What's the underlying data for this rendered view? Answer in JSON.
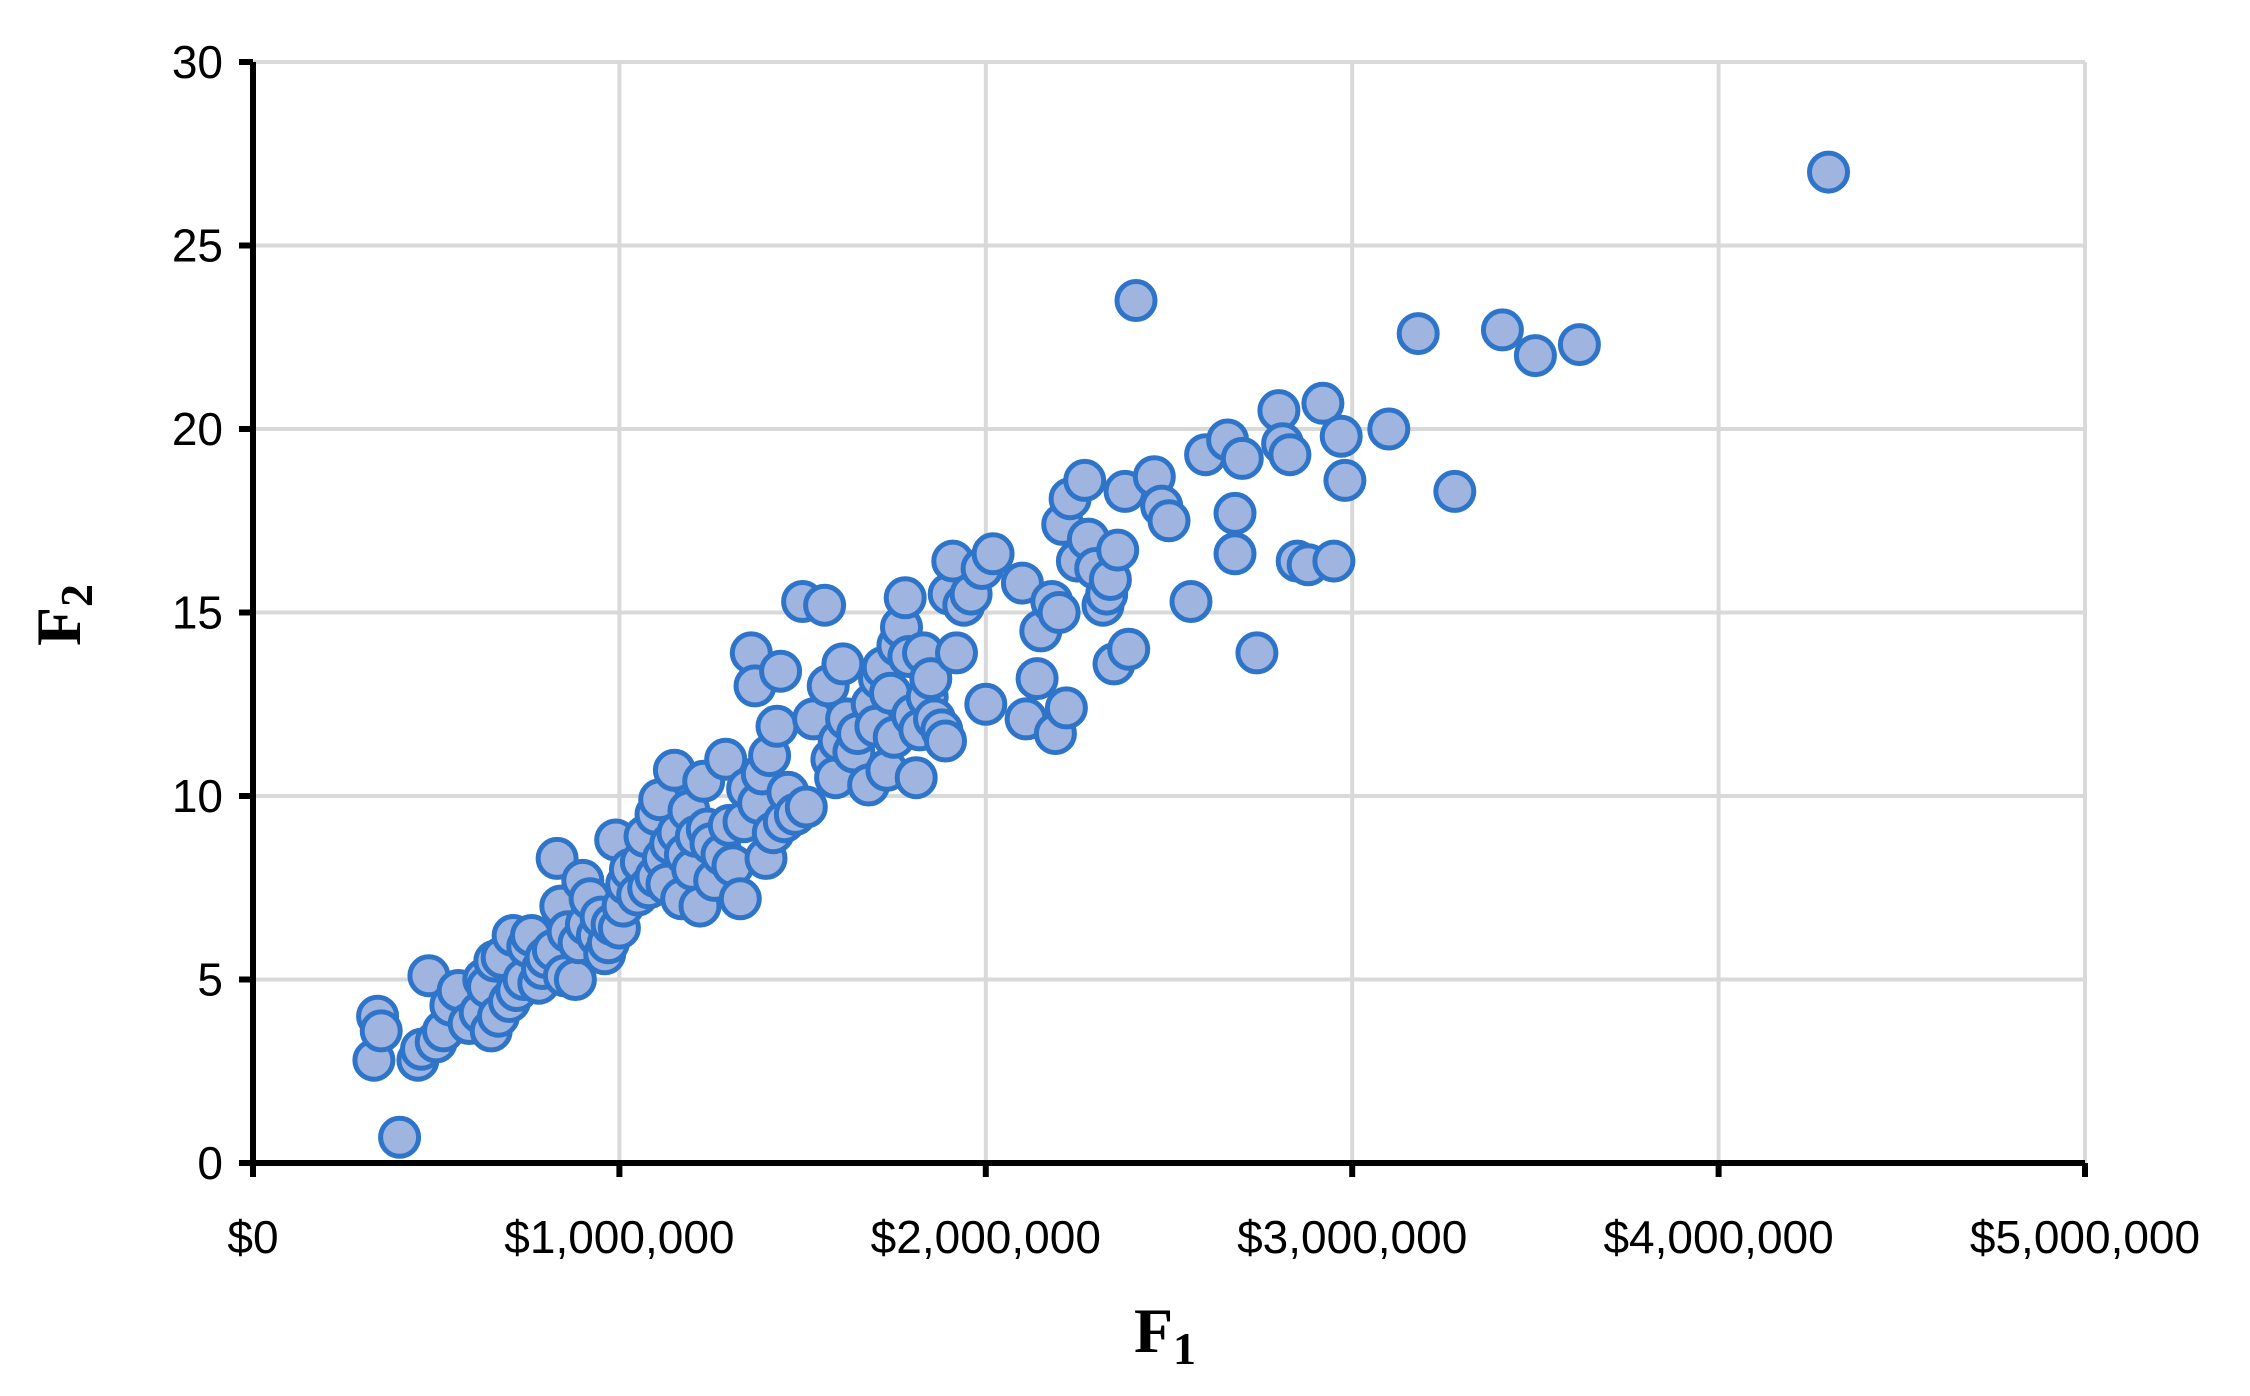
{
  "chart_data": {
    "type": "scatter",
    "title": "",
    "xlabel": "F",
    "xlabel_sub": "1",
    "ylabel": "F",
    "ylabel_sub": "2",
    "xlim": [
      0,
      5000000
    ],
    "ylim": [
      0,
      30
    ],
    "grid": true,
    "legend": "none",
    "x_ticks": [
      {
        "value": 0,
        "label": "$0"
      },
      {
        "value": 1000000,
        "label": "$1,000,000"
      },
      {
        "value": 2000000,
        "label": "$2,000,000"
      },
      {
        "value": 3000000,
        "label": "$3,000,000"
      },
      {
        "value": 4000000,
        "label": "$4,000,000"
      },
      {
        "value": 5000000,
        "label": "$5,000,000"
      }
    ],
    "y_ticks": [
      {
        "value": 0,
        "label": "0"
      },
      {
        "value": 5,
        "label": "5"
      },
      {
        "value": 10,
        "label": "10"
      },
      {
        "value": 15,
        "label": "15"
      },
      {
        "value": 20,
        "label": "20"
      },
      {
        "value": 25,
        "label": "25"
      },
      {
        "value": 30,
        "label": "30"
      }
    ],
    "colors": {
      "marker_fill": "#9fb4de",
      "marker_edge": "#2e75c9",
      "grid": "#d9d9d9",
      "axis": "#000000"
    },
    "series": [
      {
        "points": [
          [
            330000,
            2.8
          ],
          [
            340000,
            4.0
          ],
          [
            350000,
            3.6
          ],
          [
            400000,
            0.7
          ],
          [
            450000,
            2.8
          ],
          [
            460000,
            3.1
          ],
          [
            480000,
            5.1
          ],
          [
            500000,
            3.3
          ],
          [
            520000,
            3.6
          ],
          [
            540000,
            4.3
          ],
          [
            560000,
            4.7
          ],
          [
            590000,
            3.8
          ],
          [
            620000,
            4.1
          ],
          [
            630000,
            5.0
          ],
          [
            640000,
            4.8
          ],
          [
            650000,
            3.6
          ],
          [
            660000,
            5.5
          ],
          [
            670000,
            4.0
          ],
          [
            680000,
            5.6
          ],
          [
            700000,
            4.4
          ],
          [
            710000,
            6.2
          ],
          [
            720000,
            4.7
          ],
          [
            740000,
            5.0
          ],
          [
            750000,
            5.9
          ],
          [
            760000,
            6.2
          ],
          [
            780000,
            4.9
          ],
          [
            790000,
            5.3
          ],
          [
            800000,
            5.6
          ],
          [
            820000,
            5.8
          ],
          [
            830000,
            8.3
          ],
          [
            840000,
            7.0
          ],
          [
            850000,
            5.1
          ],
          [
            860000,
            6.3
          ],
          [
            880000,
            5.0
          ],
          [
            890000,
            6.0
          ],
          [
            900000,
            7.7
          ],
          [
            910000,
            6.5
          ],
          [
            920000,
            7.2
          ],
          [
            940000,
            6.2
          ],
          [
            950000,
            6.7
          ],
          [
            960000,
            5.7
          ],
          [
            970000,
            6.0
          ],
          [
            980000,
            6.5
          ],
          [
            990000,
            8.8
          ],
          [
            1000000,
            6.4
          ],
          [
            1010000,
            7.0
          ],
          [
            1020000,
            7.6
          ],
          [
            1030000,
            8.0
          ],
          [
            1050000,
            7.3
          ],
          [
            1060000,
            8.2
          ],
          [
            1070000,
            8.9
          ],
          [
            1080000,
            7.5
          ],
          [
            1100000,
            9.5
          ],
          [
            1100000,
            7.8
          ],
          [
            1110000,
            9.9
          ],
          [
            1120000,
            8.3
          ],
          [
            1130000,
            7.6
          ],
          [
            1140000,
            8.7
          ],
          [
            1150000,
            10.7
          ],
          [
            1160000,
            9.0
          ],
          [
            1170000,
            7.2
          ],
          [
            1180000,
            8.4
          ],
          [
            1190000,
            9.6
          ],
          [
            1200000,
            8.0
          ],
          [
            1210000,
            8.9
          ],
          [
            1220000,
            7.0
          ],
          [
            1230000,
            10.4
          ],
          [
            1240000,
            9.1
          ],
          [
            1250000,
            8.7
          ],
          [
            1260000,
            7.7
          ],
          [
            1280000,
            8.4
          ],
          [
            1290000,
            11.0
          ],
          [
            1300000,
            9.2
          ],
          [
            1310000,
            8.1
          ],
          [
            1330000,
            7.2
          ],
          [
            1340000,
            9.3
          ],
          [
            1350000,
            10.2
          ],
          [
            1360000,
            13.9
          ],
          [
            1370000,
            13.0
          ],
          [
            1380000,
            9.8
          ],
          [
            1390000,
            10.6
          ],
          [
            1400000,
            8.3
          ],
          [
            1410000,
            11.1
          ],
          [
            1420000,
            9.0
          ],
          [
            1430000,
            11.9
          ],
          [
            1440000,
            13.4
          ],
          [
            1450000,
            9.3
          ],
          [
            1460000,
            10.1
          ],
          [
            1480000,
            9.5
          ],
          [
            1500000,
            15.3
          ],
          [
            1510000,
            9.7
          ],
          [
            1530000,
            12.1
          ],
          [
            1560000,
            15.2
          ],
          [
            1570000,
            13.0
          ],
          [
            1580000,
            11.0
          ],
          [
            1590000,
            10.5
          ],
          [
            1600000,
            11.5
          ],
          [
            1610000,
            13.6
          ],
          [
            1620000,
            12.1
          ],
          [
            1640000,
            11.2
          ],
          [
            1650000,
            11.7
          ],
          [
            1680000,
            10.3
          ],
          [
            1690000,
            12.5
          ],
          [
            1700000,
            11.9
          ],
          [
            1710000,
            13.2
          ],
          [
            1720000,
            13.5
          ],
          [
            1730000,
            10.7
          ],
          [
            1740000,
            12.8
          ],
          [
            1750000,
            11.6
          ],
          [
            1760000,
            14.1
          ],
          [
            1770000,
            14.6
          ],
          [
            1780000,
            15.4
          ],
          [
            1790000,
            13.8
          ],
          [
            1800000,
            12.2
          ],
          [
            1810000,
            10.5
          ],
          [
            1820000,
            11.8
          ],
          [
            1830000,
            13.9
          ],
          [
            1840000,
            12.7
          ],
          [
            1850000,
            13.2
          ],
          [
            1860000,
            12.1
          ],
          [
            1880000,
            11.8
          ],
          [
            1890000,
            11.5
          ],
          [
            1900000,
            15.5
          ],
          [
            1910000,
            16.4
          ],
          [
            1920000,
            13.9
          ],
          [
            1940000,
            15.2
          ],
          [
            1960000,
            15.5
          ],
          [
            1990000,
            16.2
          ],
          [
            2000000,
            12.5
          ],
          [
            2020000,
            16.6
          ],
          [
            2100000,
            15.8
          ],
          [
            2110000,
            12.1
          ],
          [
            2140000,
            13.2
          ],
          [
            2150000,
            14.5
          ],
          [
            2180000,
            15.3
          ],
          [
            2190000,
            11.7
          ],
          [
            2200000,
            15.0
          ],
          [
            2210000,
            17.4
          ],
          [
            2220000,
            12.4
          ],
          [
            2230000,
            18.1
          ],
          [
            2250000,
            16.4
          ],
          [
            2270000,
            18.6
          ],
          [
            2280000,
            17.0
          ],
          [
            2300000,
            16.2
          ],
          [
            2320000,
            15.2
          ],
          [
            2330000,
            15.5
          ],
          [
            2340000,
            15.9
          ],
          [
            2350000,
            13.6
          ],
          [
            2360000,
            16.7
          ],
          [
            2380000,
            18.3
          ],
          [
            2390000,
            14.0
          ],
          [
            2410000,
            23.5
          ],
          [
            2460000,
            18.7
          ],
          [
            2480000,
            17.9
          ],
          [
            2500000,
            17.5
          ],
          [
            2560000,
            15.3
          ],
          [
            2600000,
            19.3
          ],
          [
            2660000,
            19.7
          ],
          [
            2680000,
            17.7
          ],
          [
            2680000,
            16.6
          ],
          [
            2700000,
            19.2
          ],
          [
            2740000,
            13.9
          ],
          [
            2800000,
            20.5
          ],
          [
            2810000,
            19.6
          ],
          [
            2830000,
            19.3
          ],
          [
            2850000,
            16.4
          ],
          [
            2880000,
            16.3
          ],
          [
            2920000,
            20.7
          ],
          [
            2950000,
            16.4
          ],
          [
            2970000,
            19.8
          ],
          [
            2980000,
            18.6
          ],
          [
            3100000,
            20.0
          ],
          [
            3180000,
            22.6
          ],
          [
            3280000,
            18.3
          ],
          [
            3410000,
            22.7
          ],
          [
            3500000,
            22.0
          ],
          [
            3620000,
            22.3
          ],
          [
            4300000,
            27.0
          ]
        ]
      }
    ]
  }
}
